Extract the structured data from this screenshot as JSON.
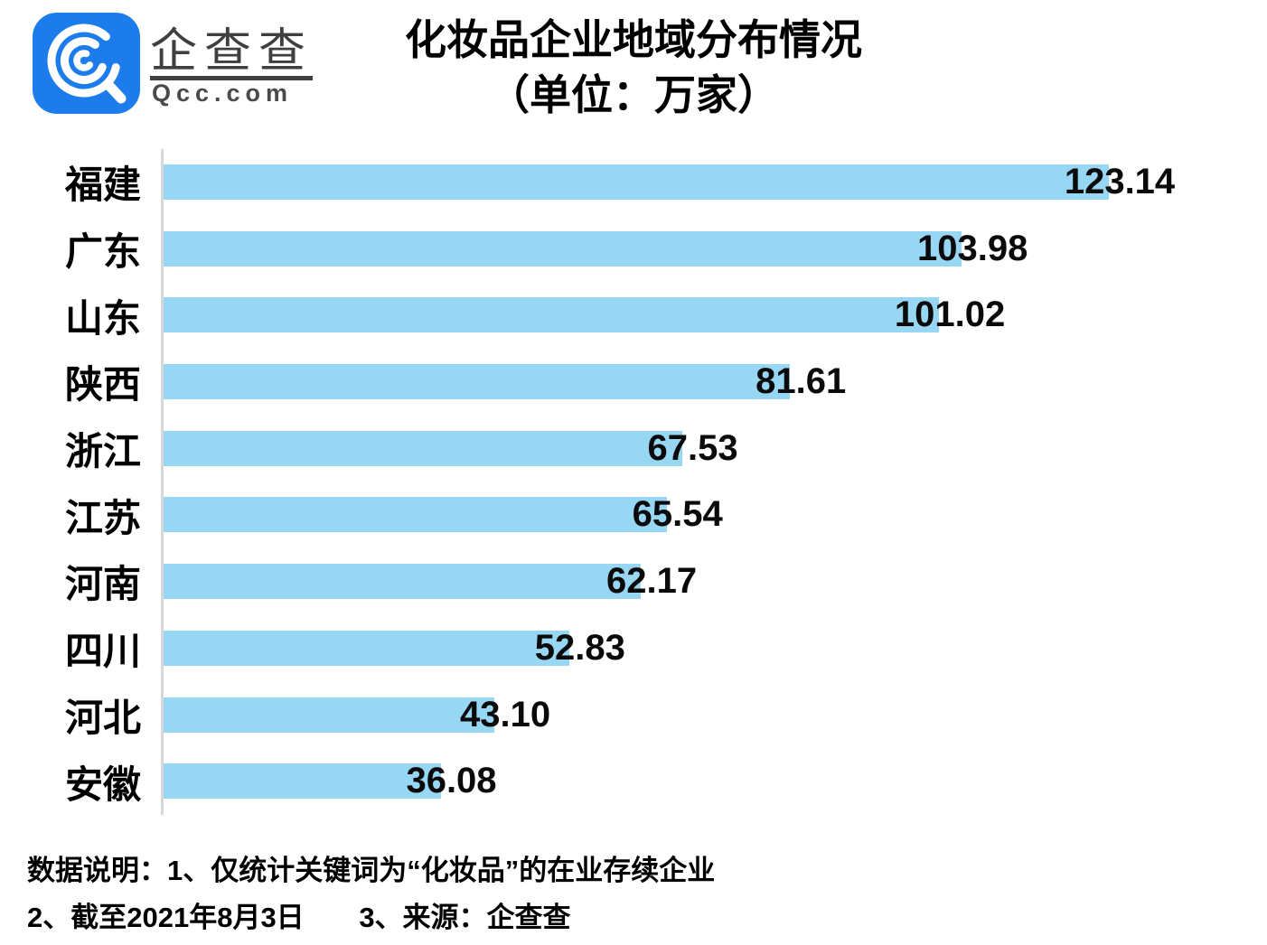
{
  "brand": {
    "name": "企查查",
    "domain": "Qcc.com",
    "icon": "qcc-magnifier-icon"
  },
  "title": {
    "line1": "化妆品企业地域分布情况",
    "line2": "（单位：万家）"
  },
  "chart_data": {
    "type": "bar",
    "orientation": "horizontal",
    "title": "化妆品企业地域分布情况",
    "unit": "万家",
    "categories": [
      "福建",
      "广东",
      "山东",
      "陕西",
      "浙江",
      "江苏",
      "河南",
      "四川",
      "河北",
      "安徽"
    ],
    "values": [
      123.14,
      103.98,
      101.02,
      81.61,
      67.53,
      65.54,
      62.17,
      52.83,
      43.1,
      36.08
    ],
    "value_labels": [
      "123.14",
      "103.98",
      "101.02",
      "81.61",
      "67.53",
      "65.54",
      "62.17",
      "52.83",
      "43.10",
      "36.08"
    ],
    "xlim": [
      0,
      130
    ],
    "grid": false,
    "legend": false,
    "value_axis_ticks_visible": false,
    "bar_color": "#97D7F3"
  },
  "footnotes": {
    "line1": "数据说明：1、仅统计关键词为“化妆品”的在业存续企业",
    "line2_date": "2、截至2021年8月3日",
    "line2_source": "3、来源：企查查"
  },
  "colors": {
    "bar": "#97D7F3",
    "logo_blue": "#1C7CEC",
    "axis_line": "#D8D8D8",
    "title_text": "#000000",
    "brand_text": "#3F3F3F"
  }
}
